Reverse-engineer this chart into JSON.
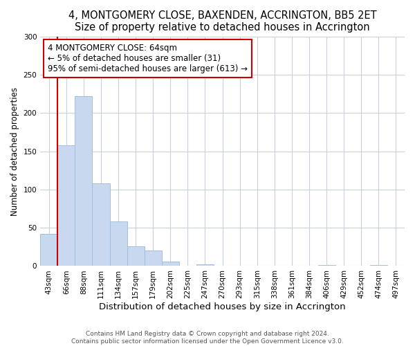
{
  "title": "4, MONTGOMERY CLOSE, BAXENDEN, ACCRINGTON, BB5 2ET",
  "subtitle": "Size of property relative to detached houses in Accrington",
  "xlabel": "Distribution of detached houses by size in Accrington",
  "ylabel": "Number of detached properties",
  "bar_labels": [
    "43sqm",
    "66sqm",
    "88sqm",
    "111sqm",
    "134sqm",
    "157sqm",
    "179sqm",
    "202sqm",
    "225sqm",
    "247sqm",
    "270sqm",
    "293sqm",
    "315sqm",
    "338sqm",
    "361sqm",
    "384sqm",
    "406sqm",
    "429sqm",
    "452sqm",
    "474sqm",
    "497sqm"
  ],
  "bar_values": [
    42,
    158,
    222,
    108,
    58,
    26,
    20,
    6,
    0,
    2,
    0,
    0,
    0,
    0,
    0,
    0,
    1,
    0,
    0,
    1,
    0
  ],
  "bar_color": "#c8d9ef",
  "bar_edge_color": "#a0bedd",
  "ylim": [
    0,
    300
  ],
  "yticks": [
    0,
    50,
    100,
    150,
    200,
    250,
    300
  ],
  "annotation_box_text": "4 MONTGOMERY CLOSE: 64sqm\n← 5% of detached houses are smaller (31)\n95% of semi-detached houses are larger (613) →",
  "annotation_box_color": "#ffffff",
  "annotation_box_edge_color": "#cc0000",
  "property_line_color": "#cc0000",
  "background_color": "#ffffff",
  "grid_color": "#c8d0dc",
  "footnote": "Contains HM Land Registry data © Crown copyright and database right 2024.\nContains public sector information licensed under the Open Government Licence v3.0.",
  "title_fontsize": 10.5,
  "xlabel_fontsize": 9.5,
  "ylabel_fontsize": 8.5,
  "tick_fontsize": 7.5,
  "annotation_fontsize": 8.5,
  "footnote_fontsize": 6.5
}
